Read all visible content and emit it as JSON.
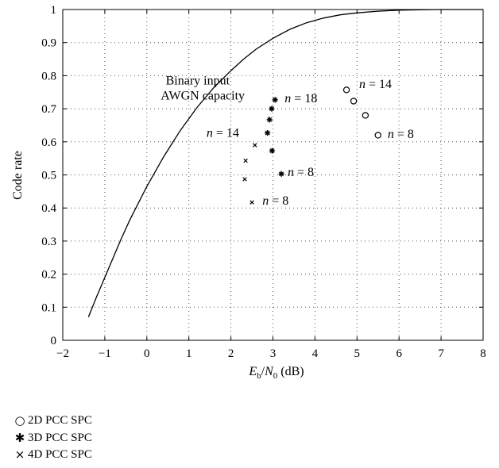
{
  "chart_data": {
    "type": "scatter",
    "xlabel": "E_b/N_0 (dB)",
    "xlabel_parts": {
      "main1": "E",
      "sub1": "b",
      "slash": "/",
      "main2": "N",
      "sub2": "0",
      "unit": " (dB)"
    },
    "ylabel": "Code rate",
    "xlim": [
      -2,
      8
    ],
    "ylim": [
      0,
      1
    ],
    "xticks": [
      -2,
      -1,
      0,
      1,
      2,
      3,
      4,
      5,
      6,
      7,
      8
    ],
    "yticks": [
      0,
      0.1,
      0.2,
      0.3,
      0.4,
      0.5,
      0.6,
      0.7,
      0.8,
      0.9,
      1
    ],
    "xtick_labels": [
      "−2",
      "−1",
      "0",
      "1",
      "2",
      "3",
      "4",
      "5",
      "6",
      "7",
      "8"
    ],
    "ytick_labels": [
      "0",
      "0.1",
      "0.2",
      "0.3",
      "0.4",
      "0.5",
      "0.6",
      "0.7",
      "0.8",
      "0.9",
      "1"
    ],
    "grid": true,
    "capacity_curve": {
      "x": [
        -1.39,
        -1.2,
        -1.0,
        -0.8,
        -0.6,
        -0.4,
        -0.2,
        0.0,
        0.2,
        0.4,
        0.6,
        0.8,
        1.0,
        1.2,
        1.4,
        1.6,
        1.8,
        2.0,
        2.3,
        2.6,
        3.0,
        3.4,
        3.8,
        4.2,
        4.6,
        5.0,
        5.5,
        6.0,
        6.5,
        7.0,
        7.5,
        8.0
      ],
      "y": [
        0.07,
        0.13,
        0.19,
        0.25,
        0.31,
        0.365,
        0.415,
        0.465,
        0.51,
        0.555,
        0.595,
        0.635,
        0.67,
        0.705,
        0.735,
        0.765,
        0.79,
        0.815,
        0.85,
        0.88,
        0.913,
        0.94,
        0.96,
        0.974,
        0.984,
        0.99,
        0.995,
        0.998,
        0.999,
        1.0,
        1.0,
        1.0
      ]
    },
    "series": [
      {
        "name": "2D PCC SPC",
        "marker": "circle",
        "x": [
          4.75,
          4.92,
          5.2,
          5.5
        ],
        "y": [
          0.757,
          0.723,
          0.68,
          0.62
        ]
      },
      {
        "name": "3D PCC SPC",
        "marker": "asterisk",
        "x": [
          3.05,
          2.97,
          2.92,
          2.87,
          2.98,
          3.2
        ],
        "y": [
          0.727,
          0.7,
          0.667,
          0.627,
          0.573,
          0.503
        ]
      },
      {
        "name": "4D PCC SPC",
        "marker": "x",
        "x": [
          2.57,
          2.35,
          2.33,
          2.5
        ],
        "y": [
          0.59,
          0.543,
          0.487,
          0.417
        ]
      }
    ],
    "annotations": [
      {
        "id": "capacity-line1",
        "text": "Binary input",
        "x": 0.45,
        "y": 0.773
      },
      {
        "id": "capacity-line2",
        "text": "AWGN capacity",
        "x": 0.33,
        "y": 0.728
      },
      {
        "id": "2d-n14",
        "var": "n",
        "rest": " = 14",
        "x": 5.05,
        "y": 0.762
      },
      {
        "id": "2d-n8",
        "var": "n",
        "rest": " = 8",
        "x": 5.73,
        "y": 0.612
      },
      {
        "id": "3d-n18",
        "var": "n",
        "rest": " = 18",
        "x": 3.28,
        "y": 0.72
      },
      {
        "id": "3d-n8",
        "var": "n",
        "rest": " = 8",
        "x": 3.35,
        "y": 0.497
      },
      {
        "id": "4d-n14",
        "var": "n",
        "rest": " = 14",
        "x": 1.42,
        "y": 0.615
      },
      {
        "id": "4d-n8",
        "var": "n",
        "rest": " = 8",
        "x": 2.75,
        "y": 0.41
      }
    ]
  },
  "legend": {
    "items": [
      {
        "label": "2D PCC SPC",
        "symbol": "○"
      },
      {
        "label": "3D PCC SPC",
        "symbol": "✱"
      },
      {
        "label": "4D PCC SPC",
        "symbol": "×"
      }
    ]
  }
}
